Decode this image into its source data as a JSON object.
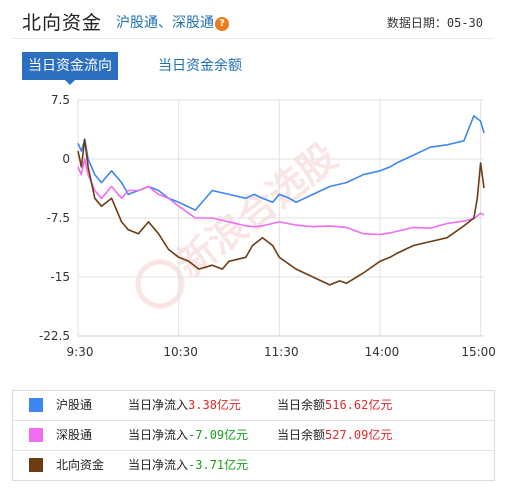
{
  "header": {
    "title": "北向资金",
    "subtitle": "沪股通、深股通",
    "help_glyph": "?",
    "date_label": "数据日期：",
    "date_value": "05-30"
  },
  "tabs": [
    {
      "label": "当日资金流向",
      "active": true
    },
    {
      "label": "当日资金余额",
      "active": false
    }
  ],
  "watermark": "新浪合选股",
  "colors": {
    "hgt": "#3d86f3",
    "sgt": "#f06cf0",
    "north": "#6e3c12",
    "accent": "#2a6fc0"
  },
  "chart_data": {
    "type": "line",
    "ylim": [
      -22.5,
      7.5
    ],
    "yticks": [
      7.5,
      0,
      -7.5,
      -15,
      -22.5
    ],
    "ytick_labels": [
      "7.5",
      "0",
      "-7.5",
      "-15",
      "-22.5"
    ],
    "xticks": [
      "9:30",
      "10:30",
      "11:30",
      "14:00",
      "15:00"
    ],
    "grid": true,
    "series": [
      {
        "name": "沪股通",
        "color": "#3d86f3",
        "x": [
          0,
          2,
          4,
          6,
          10,
          14,
          20,
          26,
          30,
          36,
          42,
          48,
          54,
          60,
          70,
          80,
          90,
          100,
          105,
          110,
          116,
          120,
          126,
          130,
          140,
          150,
          160,
          170,
          180,
          186,
          190,
          200,
          210,
          220,
          230,
          236,
          240,
          242
        ],
        "y": [
          2,
          1,
          2.5,
          0,
          -2,
          -3,
          -1.5,
          -3,
          -4.5,
          -4,
          -3.5,
          -4,
          -5,
          -5.5,
          -6.5,
          -4,
          -4.5,
          -5,
          -4.5,
          -5,
          -5.5,
          -4.5,
          -5,
          -5.5,
          -4.5,
          -3.5,
          -3,
          -2,
          -1.5,
          -1,
          -0.5,
          0.5,
          1.5,
          1.8,
          2.3,
          5.5,
          4.8,
          3.3
        ]
      },
      {
        "name": "深股通",
        "color": "#f06cf0",
        "x": [
          0,
          2,
          4,
          6,
          10,
          14,
          20,
          26,
          30,
          36,
          42,
          48,
          54,
          60,
          70,
          80,
          90,
          100,
          106,
          110,
          120,
          130,
          140,
          150,
          160,
          170,
          180,
          186,
          190,
          200,
          210,
          220,
          230,
          236,
          240,
          242
        ],
        "y": [
          -1,
          -2,
          0,
          -2,
          -4,
          -5,
          -3.5,
          -5,
          -4,
          -4,
          -3.5,
          -4.5,
          -5,
          -6,
          -7.5,
          -7.5,
          -8,
          -8.5,
          -8.6,
          -8.5,
          -8,
          -8.4,
          -8.6,
          -8.5,
          -8.7,
          -9.5,
          -9.6,
          -9.4,
          -9.2,
          -8.7,
          -8.8,
          -8.2,
          -7.9,
          -7.6,
          -6.9,
          -7.1
        ]
      },
      {
        "name": "北向资金",
        "color": "#6e3c12",
        "x": [
          0,
          2,
          4,
          6,
          10,
          14,
          20,
          26,
          30,
          36,
          42,
          48,
          54,
          60,
          66,
          72,
          80,
          86,
          90,
          100,
          104,
          110,
          116,
          120,
          130,
          140,
          150,
          156,
          160,
          170,
          180,
          186,
          190,
          200,
          210,
          220,
          230,
          236,
          238,
          240,
          242
        ],
        "y": [
          1,
          -1,
          2.5,
          -1,
          -5,
          -6,
          -5,
          -8,
          -9,
          -9.5,
          -8,
          -9.5,
          -11.5,
          -12.5,
          -13,
          -14,
          -13.5,
          -14,
          -13,
          -12.5,
          -11,
          -10,
          -11,
          -12.5,
          -14,
          -15,
          -16,
          -15.5,
          -15.8,
          -14.5,
          -13,
          -12.5,
          -12,
          -11,
          -10.5,
          -10,
          -8.5,
          -7.5,
          -5,
          -0.5,
          -3.7
        ]
      }
    ]
  },
  "legend": [
    {
      "name": "沪股通",
      "inflow_label": "当日净流入",
      "inflow_value": "3.38亿元",
      "inflow_sign": "positive",
      "balance_label": "当日余额",
      "balance_value": "516.62亿元"
    },
    {
      "name": "深股通",
      "inflow_label": "当日净流入",
      "inflow_value": "-7.09亿元",
      "inflow_sign": "negative",
      "balance_label": "当日余额",
      "balance_value": "527.09亿元"
    },
    {
      "name": "北向资金",
      "inflow_label": "当日净流入",
      "inflow_value": "-3.71亿元",
      "inflow_sign": "negative"
    }
  ]
}
